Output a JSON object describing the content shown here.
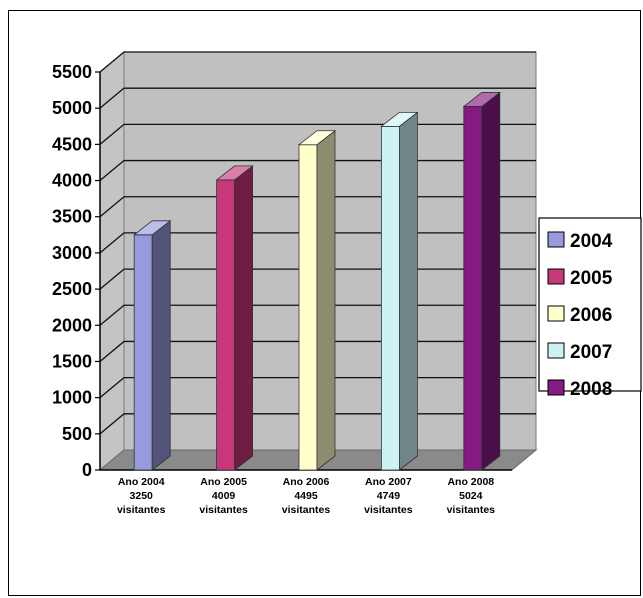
{
  "chart_data": {
    "type": "bar",
    "categories": [
      [
        "Ano 2004",
        "3250",
        "visitantes"
      ],
      [
        "Ano 2005",
        "4009",
        "visitantes"
      ],
      [
        "Ano 2006",
        "4495",
        "visitantes"
      ],
      [
        "Ano 2007",
        "4749",
        "visitantes"
      ],
      [
        "Ano 2008",
        "5024",
        "visitantes"
      ]
    ],
    "series": [
      {
        "name": "2004",
        "values": [
          3250,
          null,
          null,
          null,
          null
        ],
        "color": "#9999dd"
      },
      {
        "name": "2005",
        "values": [
          null,
          4009,
          null,
          null,
          null
        ],
        "color": "#c8377a"
      },
      {
        "name": "2006",
        "values": [
          null,
          null,
          4495,
          null,
          null
        ],
        "color": "#ffffcc"
      },
      {
        "name": "2007",
        "values": [
          null,
          null,
          null,
          4749,
          null
        ],
        "color": "#ccf2f6"
      },
      {
        "name": "2008",
        "values": [
          null,
          null,
          null,
          null,
          5024
        ],
        "color": "#861a84"
      }
    ],
    "ylim": [
      0,
      5500
    ],
    "yticks": [
      0,
      500,
      1000,
      1500,
      2000,
      2500,
      3000,
      3500,
      4000,
      4500,
      5000,
      5500
    ],
    "grid": true,
    "legend_position": "right",
    "title": "",
    "xlabel": "",
    "ylabel": ""
  }
}
